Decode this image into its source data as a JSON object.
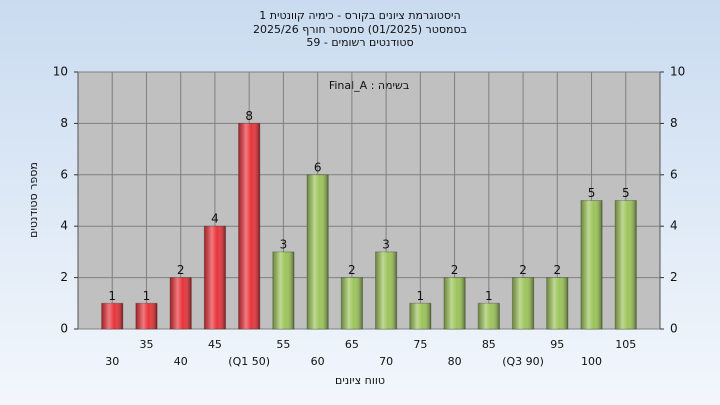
{
  "chart_data": {
    "type": "bar",
    "title": "היסטוגרמת ציונים בקורס - כימיה קוונטית 1",
    "subtitle": "בסמסטר  (01/2025)  סמסטר חורף 2025/26",
    "subtitle2": "סטודנטים רשומים - 59",
    "annotation": "בשימה : Final_A",
    "x_label": "טווח ציונים",
    "y_label": "מספר סטודנטים",
    "categories": [
      "30",
      "35",
      "40",
      "45",
      "(Q1 50)",
      "55",
      "60",
      "65",
      "70",
      "75",
      "80",
      "85",
      "(Q3 90)",
      "95",
      "100",
      "105"
    ],
    "values": [
      1,
      1,
      2,
      4,
      8,
      3,
      6,
      2,
      3,
      1,
      2,
      1,
      2,
      2,
      5,
      5
    ],
    "colors": [
      "#e8333a",
      "#e8333a",
      "#e8333a",
      "#e8333a",
      "#e8333a",
      "#9cc45a",
      "#9cc45a",
      "#9cc45a",
      "#9cc45a",
      "#9cc45a",
      "#9cc45a",
      "#9cc45a",
      "#9cc45a",
      "#9cc45a",
      "#9cc45a",
      "#9cc45a"
    ],
    "ylim": [
      0,
      10
    ],
    "yticks": [
      0,
      2,
      4,
      6,
      8,
      10
    ],
    "y2lim": [
      0,
      10
    ],
    "y2ticks": [
      0,
      2,
      4,
      6,
      8,
      10
    ],
    "grid": true
  }
}
